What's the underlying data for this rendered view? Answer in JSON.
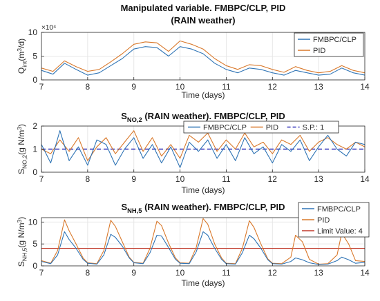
{
  "figure": {
    "background": "#ffffff",
    "axis_color": "#262626",
    "grid_color": "#e6e6e6"
  },
  "chart_data": [
    {
      "type": "line",
      "title": [
        "Manipulated variable. FMBPC/CLP, PID",
        "(RAIN weather)"
      ],
      "xlabel": "Time (days)",
      "ylabel": {
        "base": "Q",
        "sub": "int",
        "rest": "(m",
        "sup": "3",
        "tail": "/d)"
      },
      "exponent_label": "×10⁴",
      "xlim": [
        7,
        14
      ],
      "ylim": [
        0,
        10
      ],
      "xticks": [
        7,
        8,
        9,
        10,
        11,
        12,
        13,
        14
      ],
      "yticks": [
        0,
        5,
        10
      ],
      "grid": true,
      "legend_position": "top-right",
      "legend_labels": [
        "FMBPC/CLP",
        "PID"
      ],
      "series": [
        {
          "name": "FMBPC/CLP",
          "color": "#2f74b5",
          "x": [
            7,
            7.25,
            7.5,
            7.75,
            8,
            8.25,
            8.5,
            8.75,
            9,
            9.25,
            9.5,
            9.75,
            10,
            10.25,
            10.5,
            10.75,
            11,
            11.25,
            11.5,
            11.75,
            12,
            12.25,
            12.5,
            12.75,
            13,
            13.25,
            13.5,
            13.75,
            14
          ],
          "y": [
            2.0,
            1.2,
            3.5,
            2.2,
            1.0,
            1.5,
            3.0,
            4.5,
            6.5,
            7.0,
            6.8,
            5.0,
            7.0,
            6.5,
            5.5,
            3.5,
            2.2,
            1.5,
            2.5,
            2.2,
            1.5,
            1.0,
            2.0,
            1.5,
            1.0,
            1.2,
            2.5,
            1.5,
            1.0
          ]
        },
        {
          "name": "PID",
          "color": "#d9782a",
          "x": [
            7,
            7.25,
            7.5,
            7.75,
            8,
            8.25,
            8.5,
            8.75,
            9,
            9.25,
            9.5,
            9.75,
            10,
            10.25,
            10.5,
            10.75,
            11,
            11.25,
            11.5,
            11.75,
            12,
            12.25,
            12.5,
            12.75,
            13,
            13.25,
            13.5,
            13.75,
            14
          ],
          "y": [
            2.5,
            1.8,
            4.0,
            2.8,
            1.8,
            2.2,
            3.8,
            5.5,
            7.5,
            8.0,
            7.8,
            6.0,
            8.2,
            7.5,
            6.5,
            4.5,
            3.0,
            2.2,
            3.2,
            3.0,
            2.2,
            1.6,
            2.8,
            2.0,
            1.5,
            1.8,
            3.0,
            2.0,
            1.5
          ]
        }
      ]
    },
    {
      "type": "line",
      "title": {
        "base": "S",
        "sub": "NO,2",
        "rest": " (RAIN weather). FMBPC/CLP, PID"
      },
      "xlabel": "Time (days)",
      "ylabel": {
        "base": "S",
        "sub": "NO,2",
        "rest": "(g N/m",
        "sup": "3",
        "tail": ")"
      },
      "xlim": [
        7,
        14
      ],
      "ylim": [
        0,
        2
      ],
      "xticks": [
        7,
        8,
        9,
        10,
        11,
        12,
        13,
        14
      ],
      "yticks": [
        0,
        1,
        2
      ],
      "grid": true,
      "legend_position": "top",
      "legend_labels": [
        "FMBPC/CLP",
        "PID",
        "S.P.: 1"
      ],
      "setpoint": {
        "name": "S.P.: 1",
        "value": 1,
        "color": "#2b2bb8"
      },
      "series": [
        {
          "name": "FMBPC/CLP",
          "color": "#2f74b5",
          "x": [
            7,
            7.2,
            7.4,
            7.6,
            7.8,
            8,
            8.2,
            8.4,
            8.6,
            8.8,
            9,
            9.2,
            9.4,
            9.6,
            9.8,
            10,
            10.2,
            10.4,
            10.6,
            10.8,
            11,
            11.2,
            11.4,
            11.6,
            11.8,
            12,
            12.2,
            12.4,
            12.6,
            12.8,
            13,
            13.2,
            13.4,
            13.6,
            13.8,
            14
          ],
          "y": [
            1.2,
            0.4,
            1.8,
            0.5,
            1.1,
            0.3,
            1.4,
            1.2,
            0.3,
            1.0,
            1.5,
            0.6,
            1.2,
            0.4,
            1.1,
            0.2,
            1.3,
            0.9,
            1.4,
            0.6,
            1.2,
            0.5,
            1.5,
            0.8,
            1.1,
            0.4,
            1.2,
            0.9,
            1.4,
            0.5,
            1.1,
            1.6,
            1.0,
            0.7,
            1.3,
            1.2
          ]
        },
        {
          "name": "PID",
          "color": "#d9782a",
          "x": [
            7,
            7.2,
            7.4,
            7.6,
            7.8,
            8,
            8.2,
            8.4,
            8.6,
            8.8,
            9,
            9.2,
            9.4,
            9.6,
            9.8,
            10,
            10.2,
            10.4,
            10.6,
            10.8,
            11,
            11.2,
            11.4,
            11.6,
            11.8,
            12,
            12.2,
            12.4,
            12.6,
            12.8,
            13,
            13.2,
            13.4,
            13.6,
            13.8,
            14
          ],
          "y": [
            1.0,
            0.8,
            1.4,
            0.9,
            1.5,
            0.5,
            1.1,
            1.5,
            0.8,
            1.3,
            1.8,
            0.9,
            1.5,
            0.7,
            1.2,
            0.6,
            1.6,
            1.3,
            1.7,
            0.9,
            1.4,
            1.0,
            1.7,
            1.1,
            1.3,
            0.8,
            1.4,
            1.2,
            1.6,
            0.9,
            1.3,
            1.5,
            1.2,
            1.0,
            1.3,
            1.1
          ]
        }
      ]
    },
    {
      "type": "line",
      "title": {
        "base": "S",
        "sub": "NH,5",
        "rest": " (RAIN weather). FMBPC/CLP, PID"
      },
      "xlabel": "Time (days)",
      "ylabel": {
        "base": "S",
        "sub": "NH,5",
        "rest": "(g N/m",
        "sup": "3",
        "tail": ")"
      },
      "xlim": [
        7,
        14
      ],
      "ylim": [
        0,
        11
      ],
      "xticks": [
        7,
        8,
        9,
        10,
        11,
        12,
        13,
        14
      ],
      "yticks": [
        0,
        5,
        10
      ],
      "grid": true,
      "legend_position": "top-right",
      "legend_labels": [
        "FMBPC/CLP",
        "PID",
        "Limit Value: 4"
      ],
      "limit": {
        "name": "Limit Value: 4",
        "value": 4,
        "color": "#c0392b"
      },
      "series": [
        {
          "name": "FMBPC/CLP",
          "color": "#2f74b5",
          "x": [
            7,
            7.2,
            7.35,
            7.5,
            7.6,
            7.75,
            7.9,
            8,
            8.2,
            8.35,
            8.5,
            8.6,
            8.75,
            8.9,
            9,
            9.2,
            9.35,
            9.5,
            9.6,
            9.75,
            9.9,
            10,
            10.2,
            10.35,
            10.5,
            10.6,
            10.75,
            10.9,
            11,
            11.2,
            11.35,
            11.5,
            11.6,
            11.75,
            11.9,
            12,
            12.2,
            12.4,
            12.5,
            12.65,
            12.8,
            13,
            13.2,
            13.4,
            13.5,
            13.65,
            13.8,
            14
          ],
          "y": [
            1.0,
            0.5,
            2.5,
            7.8,
            6.0,
            4.0,
            1.5,
            0.6,
            0.4,
            2.5,
            7.2,
            6.5,
            4.5,
            1.8,
            0.7,
            0.5,
            3.0,
            7.0,
            6.8,
            4.2,
            1.5,
            0.6,
            0.5,
            3.2,
            7.8,
            7.0,
            4.0,
            1.5,
            0.5,
            0.4,
            3.0,
            7.0,
            6.2,
            4.0,
            1.4,
            0.5,
            0.4,
            1.0,
            1.8,
            1.4,
            0.7,
            0.3,
            0.4,
            1.2,
            2.0,
            1.4,
            0.6,
            0.8
          ]
        },
        {
          "name": "PID",
          "color": "#d9782a",
          "x": [
            7,
            7.2,
            7.35,
            7.5,
            7.6,
            7.75,
            7.9,
            8,
            8.2,
            8.35,
            8.5,
            8.6,
            8.75,
            8.9,
            9,
            9.2,
            9.35,
            9.5,
            9.6,
            9.75,
            9.9,
            10,
            10.2,
            10.35,
            10.5,
            10.6,
            10.75,
            10.9,
            11,
            11.2,
            11.35,
            11.5,
            11.6,
            11.75,
            11.9,
            12,
            12.2,
            12.4,
            12.5,
            12.65,
            12.8,
            13,
            13.2,
            13.4,
            13.5,
            13.65,
            13.8,
            14
          ],
          "y": [
            1.2,
            0.6,
            3.5,
            10.5,
            8.0,
            5.0,
            1.8,
            0.7,
            0.5,
            3.5,
            10.4,
            9.0,
            5.5,
            2.0,
            0.8,
            0.6,
            4.0,
            10.2,
            9.2,
            5.2,
            1.8,
            0.7,
            0.6,
            4.2,
            10.8,
            9.5,
            5.0,
            1.8,
            0.6,
            0.5,
            4.0,
            10.3,
            8.8,
            5.0,
            1.6,
            0.6,
            0.5,
            2.0,
            7.0,
            5.5,
            1.5,
            0.4,
            0.5,
            2.5,
            7.5,
            5.0,
            1.2,
            1.0
          ]
        }
      ]
    }
  ]
}
